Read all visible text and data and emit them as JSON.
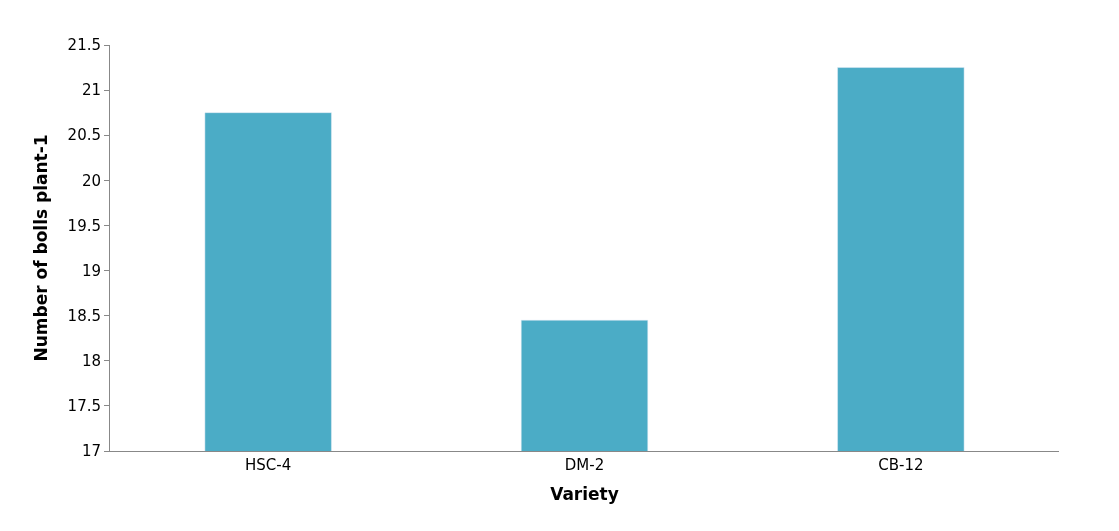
{
  "chart_data": {
    "type": "bar",
    "xlabel": "Variety",
    "ylabel": "Number of bolls plant-1",
    "categories": [
      "HSC-4",
      "DM-2",
      "CB-12"
    ],
    "values": [
      20.75,
      18.45,
      21.25
    ],
    "color": "#4bacc6",
    "ylim": [
      17,
      21.5
    ],
    "yticks": [
      17,
      17.5,
      18,
      18.5,
      19,
      19.5,
      20,
      20.5,
      21,
      21.5
    ]
  }
}
